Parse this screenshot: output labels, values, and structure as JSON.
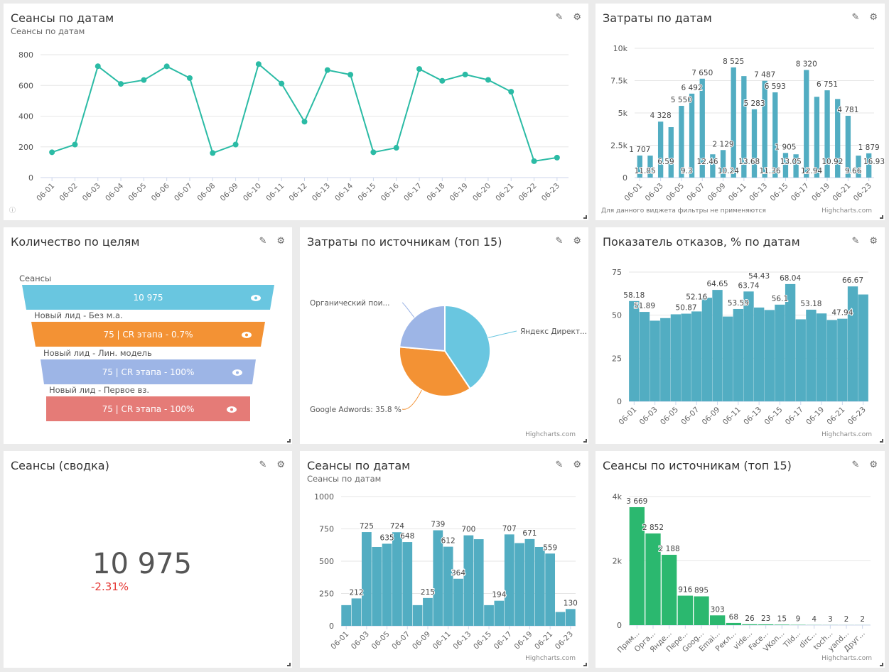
{
  "tools": {
    "edit_icon": "pencil-icon",
    "settings_icon": "gear-icon"
  },
  "credit": "Highcharts.com",
  "panels": {
    "sessions_line": {
      "title": "Сеансы по датам",
      "subtitle": "Сеансы по датам"
    },
    "costs_dates": {
      "title": "Затраты по датам",
      "note": "Для данного виджета фильтры не применяются"
    },
    "goals": {
      "title": "Количество по целям"
    },
    "costs_sources": {
      "title": "Затраты по источникам (топ 15)"
    },
    "bounce": {
      "title": "Показатель отказов, % по датам"
    },
    "summary": {
      "title": "Сеансы (сводка)",
      "value": "10 975",
      "delta": "-2.31%",
      "delta_color": "#e53935"
    },
    "sessions_bar": {
      "title": "Сеансы по датам",
      "subtitle": "Сеансы по датам"
    },
    "sessions_sources": {
      "title": "Сеансы по источникам (топ 15)"
    }
  },
  "funnel": [
    {
      "label": "Сеансы",
      "text": "10 975",
      "color": "#69c6e0"
    },
    {
      "label": "Новый лид - Без м.а.",
      "text": "75 | CR этапа - 0.7%",
      "color": "#f39234"
    },
    {
      "label": "Новый лид - Лин. модель",
      "text": "75 | CR этапа - 100%",
      "color": "#9db5e6"
    },
    {
      "label": "Новый лид - Первое вз.",
      "text": "75 | CR этапа - 100%",
      "color": "#e57b77"
    }
  ],
  "chart_data": [
    {
      "id": "sessions_line",
      "type": "line",
      "color": "#2bbba5",
      "categories": [
        "06-01",
        "06-02",
        "06-03",
        "06-04",
        "06-05",
        "06-06",
        "06-07",
        "06-08",
        "06-09",
        "06-10",
        "06-11",
        "06-12",
        "06-13",
        "06-14",
        "06-15",
        "06-16",
        "06-17",
        "06-18",
        "06-19",
        "06-20",
        "06-21",
        "06-22",
        "06-23"
      ],
      "values": [
        165,
        215,
        725,
        610,
        635,
        724,
        648,
        160,
        215,
        739,
        612,
        364,
        700,
        670,
        165,
        194,
        707,
        630,
        671,
        636,
        559,
        107,
        130
      ],
      "ylim": [
        0,
        800
      ],
      "yticks": [
        "0",
        "200",
        "400",
        "600",
        "800"
      ],
      "grid": true
    },
    {
      "id": "costs_dates",
      "type": "bar",
      "color": "#52adc2",
      "categories": [
        "06-01",
        "06-02",
        "06-03",
        "06-04",
        "06-05",
        "06-06",
        "06-07",
        "06-08",
        "06-09",
        "06-10",
        "06-11",
        "06-12",
        "06-13",
        "06-14",
        "06-15",
        "06-16",
        "06-17",
        "06-18",
        "06-19",
        "06-20",
        "06-21",
        "06-22",
        "06-23"
      ],
      "values": [
        1707,
        1700,
        4328,
        3900,
        5550,
        6492,
        7650,
        1800,
        2129,
        8525,
        7850,
        5283,
        7487,
        6593,
        1905,
        1800,
        8320,
        6250,
        6751,
        6080,
        4781,
        1700,
        1879
      ],
      "labels": [
        "1 707",
        null,
        "4 328",
        null,
        "5 550",
        "6 492",
        "7 650",
        null,
        "2 129",
        "8 525",
        null,
        "5 283",
        "7 487",
        "6 593",
        "1 905",
        null,
        "8 320",
        null,
        "6 751",
        null,
        "4 781",
        null,
        "1 879"
      ],
      "secondary_labels": [
        "11.85",
        "6.59",
        "9.3",
        "12.46",
        "10.24",
        "13.68",
        "11.36",
        "13.05",
        "12.94",
        "10.92",
        "9.66",
        "16.93"
      ],
      "ylim": [
        0,
        10000
      ],
      "yticks": [
        "0",
        "2.5k",
        "5k",
        "7.5k",
        "10k"
      ],
      "grid": true
    },
    {
      "id": "costs_sources",
      "type": "pie",
      "slices": [
        {
          "name": "Яндекс Директ",
          "label": "Яндекс Директ...",
          "value": 40.6,
          "color": "#69c6e0"
        },
        {
          "name": "Google Adwords",
          "label": "Google Adwords: 35.8 %",
          "value": 35.8,
          "color": "#f39234"
        },
        {
          "name": "Органический поиск",
          "label": "Органический пои...",
          "value": 23.6,
          "color": "#9db5e6"
        }
      ]
    },
    {
      "id": "bounce",
      "type": "bar",
      "color": "#52adc2",
      "categories": [
        "06-01",
        "06-02",
        "06-03",
        "06-04",
        "06-05",
        "06-06",
        "06-07",
        "06-08",
        "06-09",
        "06-10",
        "06-11",
        "06-12",
        "06-13",
        "06-14",
        "06-15",
        "06-16",
        "06-17",
        "06-18",
        "06-19",
        "06-20",
        "06-21",
        "06-22",
        "06-23"
      ],
      "values": [
        58.18,
        51.89,
        46.8,
        48.3,
        50.5,
        50.87,
        52.16,
        60.1,
        64.65,
        49.2,
        53.59,
        63.74,
        54.43,
        53.0,
        56.1,
        68.04,
        47.6,
        53.18,
        51.0,
        47.2,
        47.94,
        66.67,
        62.0
      ],
      "labels": [
        "58.18",
        "51.89",
        null,
        null,
        null,
        "50.87",
        "52.16",
        null,
        "64.65",
        null,
        "53.59",
        "63.74",
        "54.43",
        null,
        "56.1",
        "68.04",
        null,
        "53.18",
        null,
        null,
        "47.94",
        "66.67",
        null
      ],
      "ylim": [
        0,
        75
      ],
      "yticks": [
        "0",
        "25",
        "50",
        "75"
      ],
      "grid": true
    },
    {
      "id": "sessions_bar",
      "type": "bar",
      "color": "#52adc2",
      "categories": [
        "06-01",
        "06-02",
        "06-03",
        "06-04",
        "06-05",
        "06-06",
        "06-07",
        "06-08",
        "06-09",
        "06-10",
        "06-11",
        "06-12",
        "06-13",
        "06-14",
        "06-15",
        "06-16",
        "06-17",
        "06-18",
        "06-19",
        "06-20",
        "06-21",
        "06-22",
        "06-23"
      ],
      "values": [
        160,
        212,
        725,
        610,
        635,
        724,
        648,
        160,
        215,
        739,
        612,
        364,
        700,
        670,
        160,
        194,
        707,
        640,
        671,
        610,
        559,
        107,
        130
      ],
      "labels": [
        null,
        "212",
        "725",
        null,
        "635",
        "724",
        "648",
        null,
        "215",
        "739",
        "612",
        "364",
        "700",
        null,
        null,
        "194",
        "707",
        null,
        "671",
        null,
        "559",
        null,
        "130"
      ],
      "ylim": [
        0,
        1000
      ],
      "yticks": [
        "0",
        "250",
        "500",
        "750",
        "1000"
      ],
      "grid": true
    },
    {
      "id": "sessions_sources",
      "type": "bar",
      "color": "#2bb86f",
      "categories": [
        "Прям...",
        "Орга...",
        "Янде...",
        "Пере...",
        "Goog...",
        "Emai...",
        "Рекл...",
        "vide...",
        "Face...",
        "VKon...",
        "Tild...",
        "dirc...",
        "toch...",
        "yand...",
        "Друг..."
      ],
      "values": [
        3669,
        2852,
        2188,
        916,
        895,
        303,
        68,
        26,
        23,
        15,
        9,
        4,
        3,
        2,
        2
      ],
      "labels": [
        "3 669",
        "2 852",
        "2 188",
        "916",
        "895",
        "303",
        "68",
        "26",
        "23",
        "15",
        "9",
        "4",
        "3",
        "2",
        "2"
      ],
      "ylim": [
        0,
        4000
      ],
      "yticks": [
        "0",
        "2k",
        "4k"
      ],
      "grid": true
    }
  ]
}
